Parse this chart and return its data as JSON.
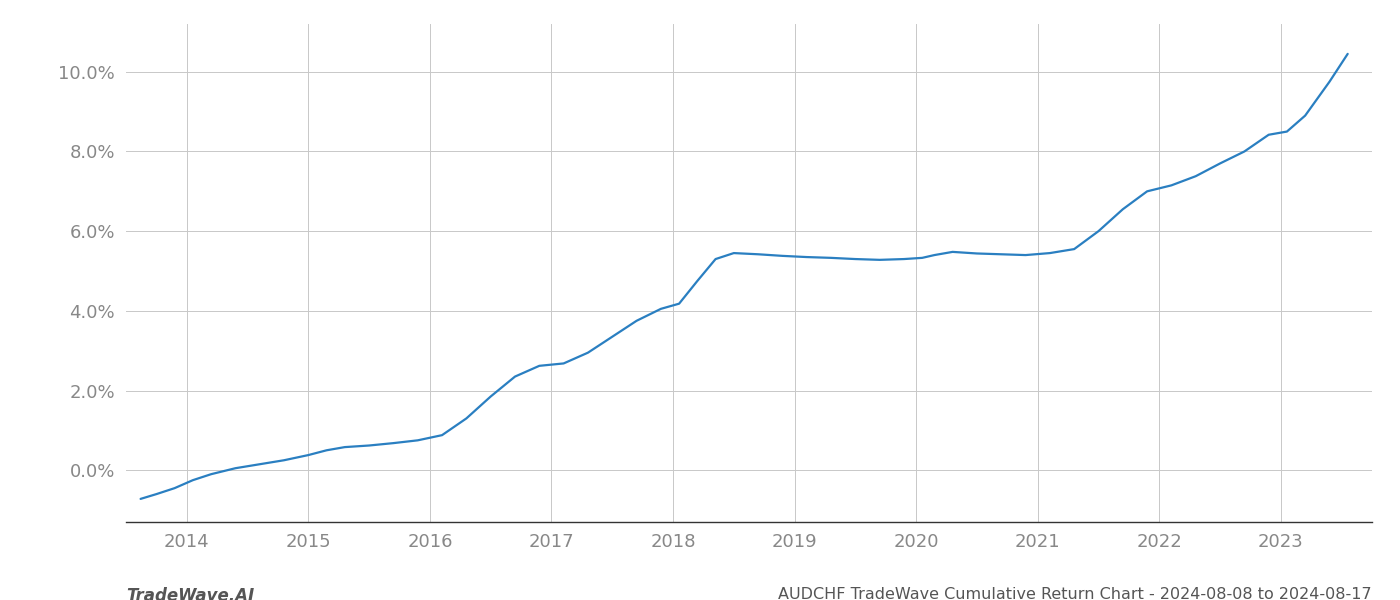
{
  "title": "AUDCHF TradeWave Cumulative Return Chart - 2024-08-08 to 2024-08-17",
  "watermark": "TradeWave.AI",
  "line_color": "#2a7fc1",
  "background_color": "#ffffff",
  "grid_color": "#c8c8c8",
  "x_values": [
    2013.62,
    2013.75,
    2013.9,
    2014.05,
    2014.2,
    2014.4,
    2014.6,
    2014.8,
    2015.0,
    2015.15,
    2015.3,
    2015.5,
    2015.7,
    2015.9,
    2016.1,
    2016.3,
    2016.5,
    2016.7,
    2016.9,
    2017.1,
    2017.3,
    2017.5,
    2017.7,
    2017.9,
    2018.05,
    2018.2,
    2018.35,
    2018.5,
    2018.7,
    2018.9,
    2019.1,
    2019.3,
    2019.5,
    2019.7,
    2019.9,
    2020.05,
    2020.15,
    2020.3,
    2020.5,
    2020.7,
    2020.9,
    2021.1,
    2021.3,
    2021.5,
    2021.7,
    2021.9,
    2022.1,
    2022.3,
    2022.5,
    2022.7,
    2022.9,
    2023.05,
    2023.2,
    2023.4,
    2023.55
  ],
  "y_values": [
    -0.72,
    -0.6,
    -0.45,
    -0.25,
    -0.1,
    0.05,
    0.15,
    0.25,
    0.38,
    0.5,
    0.58,
    0.62,
    0.68,
    0.75,
    0.88,
    1.3,
    1.85,
    2.35,
    2.62,
    2.68,
    2.95,
    3.35,
    3.75,
    4.05,
    4.18,
    4.75,
    5.3,
    5.45,
    5.42,
    5.38,
    5.35,
    5.33,
    5.3,
    5.28,
    5.3,
    5.33,
    5.4,
    5.48,
    5.44,
    5.42,
    5.4,
    5.45,
    5.55,
    6.0,
    6.55,
    7.0,
    7.15,
    7.38,
    7.7,
    8.0,
    8.42,
    8.5,
    8.9,
    9.75,
    10.45
  ],
  "xlim": [
    2013.5,
    2023.75
  ],
  "ylim": [
    -1.3,
    11.2
  ],
  "yticks": [
    0.0,
    2.0,
    4.0,
    6.0,
    8.0,
    10.0
  ],
  "ytick_labels": [
    "0.0%",
    "2.0%",
    "4.0%",
    "6.0%",
    "8.0%",
    "10.0%"
  ],
  "xticks": [
    2014,
    2015,
    2016,
    2017,
    2018,
    2019,
    2020,
    2021,
    2022,
    2023
  ],
  "line_width": 1.6,
  "title_fontsize": 11.5,
  "watermark_fontsize": 12,
  "tick_fontsize": 13,
  "title_color": "#555555",
  "tick_color": "#888888",
  "watermark_color": "#555555",
  "spine_color": "#333333"
}
